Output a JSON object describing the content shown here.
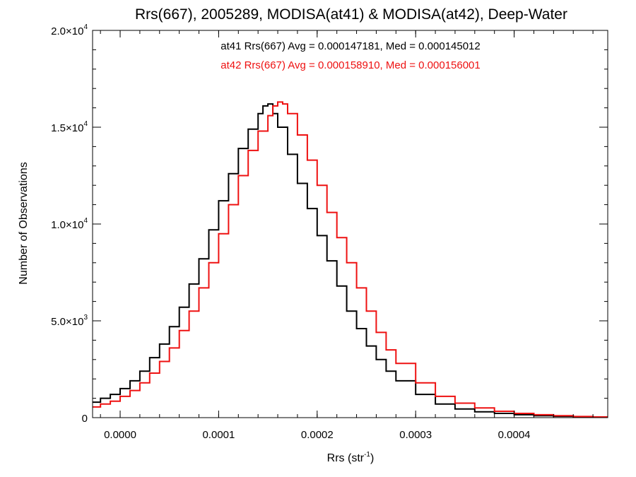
{
  "chart_data": {
    "type": "line",
    "title": "Rrs(667), 2005289, MODISA(at41) & MODISA(at42), Deep-Water",
    "xlabel_main": "Rrs (str",
    "xlabel_sup": "-1",
    "xlabel_close": ")",
    "ylabel": "Number of Observations",
    "xlim": [
      -2.8e-05,
      0.000495
    ],
    "ylim": [
      0,
      20000
    ],
    "x_ticks": [
      {
        "value": 0.0,
        "label": "0.0000"
      },
      {
        "value": 0.0001,
        "label": "0.0001"
      },
      {
        "value": 0.0002,
        "label": "0.0002"
      },
      {
        "value": 0.0003,
        "label": "0.0003"
      },
      {
        "value": 0.0004,
        "label": "0.0004"
      }
    ],
    "y_ticks": [
      {
        "value": 0,
        "label": "0",
        "exp": ""
      },
      {
        "value": 5000,
        "label": "5.0×10",
        "exp": "3"
      },
      {
        "value": 10000,
        "label": "1.0×10",
        "exp": "4"
      },
      {
        "value": 15000,
        "label": "1.5×10",
        "exp": "4"
      },
      {
        "value": 20000,
        "label": "2.0×10",
        "exp": "4"
      }
    ],
    "grid": false,
    "series": [
      {
        "name": "at41",
        "color": "#000000",
        "annotation": "at41 Rrs(667) Avg = 0.000147181, Med = 0.000145012",
        "x": [
          -2.8e-05,
          -2e-05,
          -1e-05,
          0.0,
          1e-05,
          2e-05,
          3e-05,
          4e-05,
          5e-05,
          6e-05,
          7e-05,
          8e-05,
          9e-05,
          0.0001,
          0.00011,
          0.00012,
          0.00013,
          0.00014,
          0.000145,
          0.00015,
          0.000155,
          0.00016,
          0.00017,
          0.00018,
          0.00019,
          0.0002,
          0.00021,
          0.00022,
          0.00023,
          0.00024,
          0.00025,
          0.00026,
          0.00027,
          0.00028,
          0.0003,
          0.00032,
          0.00034,
          0.00036,
          0.00038,
          0.0004,
          0.00042,
          0.00044,
          0.00046,
          0.00048,
          0.000495
        ],
        "y": [
          800,
          1000,
          1200,
          1500,
          1900,
          2400,
          3100,
          3800,
          4700,
          5700,
          6900,
          8200,
          9700,
          11200,
          12600,
          13900,
          14900,
          15700,
          16100,
          16200,
          15700,
          15000,
          13600,
          12100,
          10800,
          9400,
          8100,
          6800,
          5500,
          4600,
          3700,
          3000,
          2400,
          1900,
          1200,
          700,
          450,
          300,
          220,
          150,
          100,
          70,
          50,
          30,
          20
        ]
      },
      {
        "name": "at42",
        "color": "#ee1111",
        "annotation": "at42 Rrs(667) Avg = 0.000158910, Med = 0.000156001",
        "x": [
          -2.8e-05,
          -2e-05,
          -1e-05,
          0.0,
          1e-05,
          2e-05,
          3e-05,
          4e-05,
          5e-05,
          6e-05,
          7e-05,
          8e-05,
          9e-05,
          0.0001,
          0.00011,
          0.00012,
          0.00013,
          0.00014,
          0.00015,
          0.000155,
          0.00016,
          0.000165,
          0.00017,
          0.00018,
          0.00019,
          0.0002,
          0.00021,
          0.00022,
          0.00023,
          0.00024,
          0.00025,
          0.00026,
          0.00027,
          0.00028,
          0.0003,
          0.00032,
          0.00034,
          0.00036,
          0.00038,
          0.0004,
          0.00042,
          0.00044,
          0.00046,
          0.00048,
          0.000495
        ],
        "y": [
          550,
          700,
          850,
          1100,
          1400,
          1800,
          2300,
          2900,
          3600,
          4500,
          5500,
          6700,
          8000,
          9500,
          11000,
          12500,
          13800,
          14800,
          15600,
          16100,
          16300,
          16200,
          15700,
          14600,
          13300,
          12000,
          10600,
          9300,
          8000,
          6700,
          5500,
          4400,
          3500,
          2800,
          1800,
          1100,
          750,
          500,
          330,
          220,
          150,
          100,
          60,
          35,
          20
        ]
      }
    ]
  }
}
